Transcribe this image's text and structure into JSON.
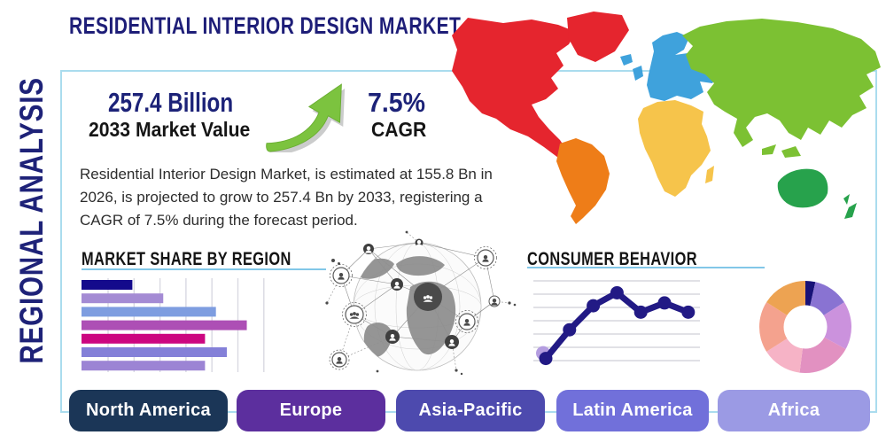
{
  "page": {
    "title": "RESIDENTIAL INTERIOR DESIGN MARKET",
    "side_label": "REGIONAL ANALYSIS"
  },
  "stats": {
    "market_value": "257.4 Billion",
    "market_value_label": "2033 Market Value",
    "cagr_value": "7.5%",
    "cagr_label": "CAGR"
  },
  "description": "Residential Interior Design Market, is estimated at 155.8 Bn in 2026, is projected to grow to 257.4 Bn by 2033, registering a CAGR of 7.5% during the forecast period.",
  "sections": {
    "market_share": "MARKET SHARE BY REGION",
    "consumer_behavior": "CONSUMER BEHAVIOR"
  },
  "icons": {
    "growth_arrow": "arrow-up-right-icon",
    "globe_network": "globe-network-icon",
    "world_map": "world-map-icon"
  },
  "colors": {
    "title_navy": "#1e1e78",
    "value_navy": "#1c2278",
    "panel_border": "#aadcee",
    "underline_blue": "#82c7e8",
    "arrow_green": "#7cc33f",
    "map_north_america": "#e5252e",
    "map_south_america": "#ee7d18",
    "map_europe": "#3fa2dc",
    "map_africa": "#f6c44b",
    "map_asia": "#7cc133",
    "map_australia": "#27a24c"
  },
  "region_buttons": [
    {
      "label": "North America",
      "color": "#1b3657"
    },
    {
      "label": "Europe",
      "color": "#5c2f9e"
    },
    {
      "label": "Asia-Pacific",
      "color": "#4d4aae"
    },
    {
      "label": "Latin America",
      "color": "#7170da"
    },
    {
      "label": "Africa",
      "color": "#9b9ae4"
    }
  ],
  "chart_data": [
    {
      "id": "market-share-by-region",
      "type": "bar",
      "orientation": "horizontal",
      "title": "MARKET SHARE BY REGION",
      "values": [
        28,
        45,
        74,
        91,
        68,
        80,
        68
      ],
      "xlim": [
        0,
        100
      ],
      "grid": "vertical",
      "bar_colors": [
        "#140a8c",
        "#a48bd4",
        "#7e9de0",
        "#ad4fb5",
        "#cc0680",
        "#8480d8",
        "#9c84d4"
      ]
    },
    {
      "id": "consumer-behavior",
      "type": "line",
      "title": "CONSUMER BEHAVIOR",
      "x": [
        1,
        2,
        3,
        4,
        5,
        6,
        7
      ],
      "y": [
        0.9,
        4.0,
        6.6,
        8.0,
        5.9,
        6.9,
        5.9
      ],
      "ylim": [
        0,
        9
      ],
      "grid": "horizontal",
      "line_color": "#221a85",
      "marker_color": "#221a85",
      "first_marker_halo_color": "#b49de0"
    },
    {
      "id": "regional-distribution-donut",
      "type": "pie",
      "donut": true,
      "values": [
        3.5,
        12.5,
        17,
        19,
        14,
        18,
        16
      ],
      "slice_colors": [
        "#181278",
        "#8973d2",
        "#cb92dd",
        "#e291c1",
        "#f6b3c6",
        "#f4a28e",
        "#eda352"
      ]
    }
  ]
}
